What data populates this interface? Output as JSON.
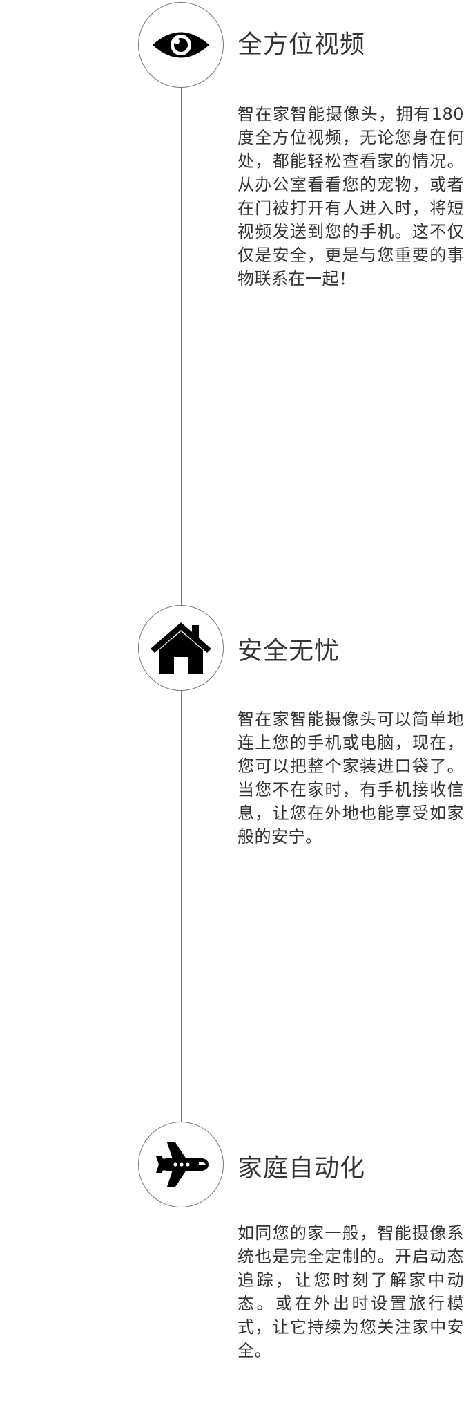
{
  "features": [
    {
      "icon": "eye-icon",
      "title": "全方位视频",
      "description": "智在家智能摄像头，拥有180度全方位视频，无论您身在何处，都能轻松查看家的情况。从办公室看看您的宠物，或者在门被打开有人进入时，将短视频发送到您的手机。这不仅仅是安全，更是与您重要的事物联系在一起！"
    },
    {
      "icon": "home-icon",
      "title": "安全无忧",
      "description": "智在家智能摄像头可以简单地连上您的手机或电脑，现在，您可以把整个家装进口袋了。当您不在家时，有手机接收信息，让您在外地也能享受如家般的安宁。"
    },
    {
      "icon": "airplane-icon",
      "title": "家庭自动化",
      "description": "如同您的家一般，智能摄像系统也是完全定制的。开启动态追踪，让您时刻了解家中动态。或在外出时设置旅行模式，让它持续为您关注家中安全。"
    }
  ],
  "colors": {
    "text": "#333333",
    "line": "#777777",
    "icon": "#000000",
    "background": "#ffffff"
  }
}
